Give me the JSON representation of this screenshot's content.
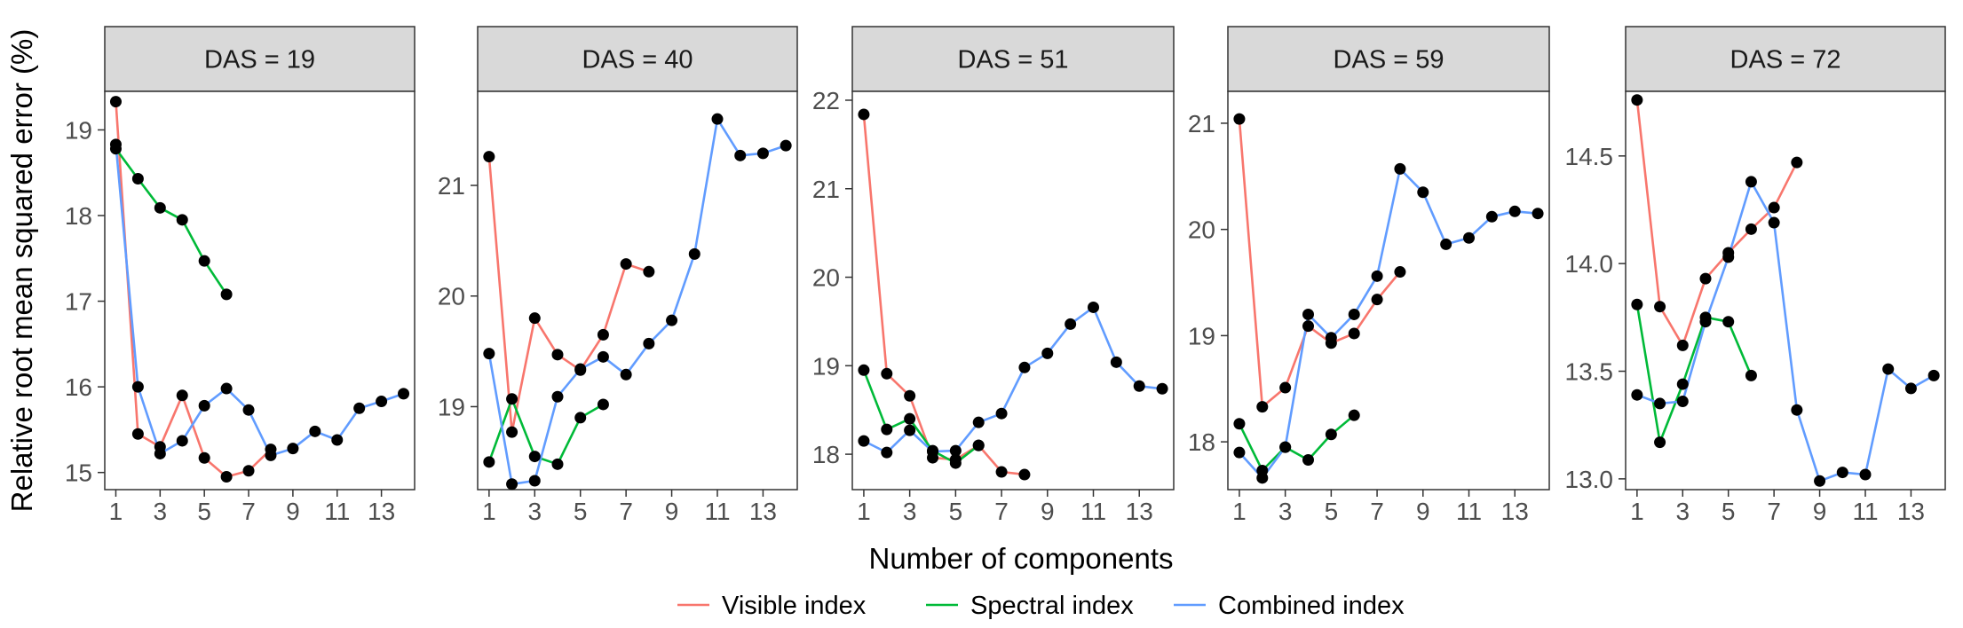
{
  "chart_data": {
    "type": "line",
    "xlabel": "Number of components",
    "ylabel": "Relative root mean squared error (%)",
    "legend": {
      "position": "bottom",
      "entries": [
        {
          "name": "Visible index",
          "color": "#F8766D"
        },
        {
          "name": "Spectral index",
          "color": "#00BA38"
        },
        {
          "name": "Combined index",
          "color": "#619CFF"
        }
      ]
    },
    "grid": false,
    "markers": {
      "shape": "circle",
      "color": "#000000"
    },
    "panels": [
      {
        "strip": "DAS = 19",
        "xlim": [
          0.5,
          14.5
        ],
        "xticks": [
          1,
          3,
          5,
          7,
          9,
          11,
          13
        ],
        "ylim": [
          14.8,
          19.45
        ],
        "yticks": [
          15,
          16,
          17,
          18,
          19
        ],
        "series": [
          {
            "name": "Visible index",
            "x": [
              1,
              2,
              3,
              4,
              5,
              6,
              7,
              8
            ],
            "y": [
              19.33,
              15.45,
              15.3,
              15.9,
              15.17,
              14.95,
              15.02,
              15.27
            ]
          },
          {
            "name": "Spectral index",
            "x": [
              1,
              2,
              3,
              4,
              5,
              6
            ],
            "y": [
              18.78,
              18.43,
              18.09,
              17.95,
              17.47,
              17.08
            ]
          },
          {
            "name": "Combined index",
            "x": [
              1,
              2,
              3,
              4,
              5,
              6,
              7,
              8,
              9,
              10,
              11,
              12,
              13,
              14
            ],
            "y": [
              18.83,
              16.0,
              15.22,
              15.37,
              15.78,
              15.98,
              15.73,
              15.2,
              15.28,
              15.48,
              15.38,
              15.75,
              15.83,
              15.92
            ]
          }
        ]
      },
      {
        "strip": "DAS = 40",
        "xlim": [
          0.5,
          14.5
        ],
        "xticks": [
          1,
          3,
          5,
          7,
          9,
          11,
          13
        ],
        "ylim": [
          18.25,
          21.85
        ],
        "yticks": [
          19,
          20,
          21
        ],
        "series": [
          {
            "name": "Visible index",
            "x": [
              1,
              2,
              3,
              4,
              5,
              6,
              7,
              8
            ],
            "y": [
              21.26,
              18.77,
              19.8,
              19.47,
              19.33,
              19.65,
              20.29,
              20.22
            ]
          },
          {
            "name": "Spectral index",
            "x": [
              1,
              2,
              3,
              4,
              5,
              6
            ],
            "y": [
              18.5,
              19.07,
              18.55,
              18.48,
              18.9,
              19.02
            ]
          },
          {
            "name": "Combined index",
            "x": [
              1,
              2,
              3,
              4,
              5,
              6,
              7,
              8,
              9,
              10,
              11,
              12,
              13,
              14
            ],
            "y": [
              19.48,
              18.3,
              18.33,
              19.09,
              19.34,
              19.45,
              19.29,
              19.57,
              19.78,
              20.38,
              21.6,
              21.27,
              21.29,
              21.36
            ]
          }
        ]
      },
      {
        "strip": "DAS = 51",
        "xlim": [
          0.5,
          14.5
        ],
        "xticks": [
          1,
          3,
          5,
          7,
          9,
          11,
          13
        ],
        "ylim": [
          17.6,
          22.1
        ],
        "yticks": [
          18,
          19,
          20,
          21,
          22
        ],
        "series": [
          {
            "name": "Visible index",
            "x": [
              1,
              2,
              3,
              4,
              5,
              6,
              7,
              8
            ],
            "y": [
              21.84,
              18.91,
              18.66,
              17.96,
              17.94,
              18.1,
              17.8,
              17.77
            ]
          },
          {
            "name": "Spectral index",
            "x": [
              1,
              2,
              3,
              4,
              5,
              6
            ],
            "y": [
              18.95,
              18.28,
              18.4,
              18.04,
              17.9,
              18.1
            ]
          },
          {
            "name": "Combined index",
            "x": [
              1,
              2,
              3,
              4,
              5,
              6,
              7,
              8,
              9,
              10,
              11,
              12,
              13,
              14
            ],
            "y": [
              18.15,
              18.02,
              18.27,
              18.03,
              18.04,
              18.36,
              18.46,
              18.98,
              19.14,
              19.47,
              19.66,
              19.04,
              18.77,
              18.74
            ]
          }
        ]
      },
      {
        "strip": "DAS = 59",
        "xlim": [
          0.5,
          14.5
        ],
        "xticks": [
          1,
          3,
          5,
          7,
          9,
          11,
          13
        ],
        "ylim": [
          17.55,
          21.3
        ],
        "yticks": [
          18,
          19,
          20,
          21
        ],
        "series": [
          {
            "name": "Visible index",
            "x": [
              1,
              2,
              3,
              4,
              5,
              6,
              7,
              8
            ],
            "y": [
              21.04,
              18.33,
              18.51,
              19.09,
              18.93,
              19.02,
              19.34,
              19.6
            ]
          },
          {
            "name": "Spectral index",
            "x": [
              1,
              2,
              3,
              4,
              5,
              6
            ],
            "y": [
              18.17,
              17.73,
              17.95,
              17.83,
              18.07,
              18.25
            ]
          },
          {
            "name": "Combined index",
            "x": [
              1,
              2,
              3,
              4,
              5,
              6,
              7,
              8,
              9,
              10,
              11,
              12,
              13,
              14
            ],
            "y": [
              17.9,
              17.66,
              17.95,
              19.2,
              18.98,
              19.2,
              19.56,
              20.57,
              20.35,
              19.86,
              19.92,
              20.12,
              20.17,
              20.15
            ]
          }
        ]
      },
      {
        "strip": "DAS = 72",
        "xlim": [
          0.5,
          14.5
        ],
        "xticks": [
          1,
          3,
          5,
          7,
          9,
          11,
          13
        ],
        "ylim": [
          12.95,
          14.8
        ],
        "yticks": [
          13.0,
          13.5,
          14.0,
          14.5
        ],
        "series": [
          {
            "name": "Visible index",
            "x": [
              1,
              2,
              3,
              4,
              5,
              6,
              7,
              8
            ],
            "y": [
              14.76,
              13.8,
              13.62,
              13.93,
              14.05,
              14.16,
              14.26,
              14.47
            ]
          },
          {
            "name": "Spectral index",
            "x": [
              1,
              2,
              3,
              4,
              5,
              6
            ],
            "y": [
              13.81,
              13.17,
              13.44,
              13.75,
              13.73,
              13.48
            ]
          },
          {
            "name": "Combined index",
            "x": [
              1,
              2,
              3,
              4,
              5,
              6,
              7,
              8,
              9,
              10,
              11,
              12,
              13,
              14
            ],
            "y": [
              13.39,
              13.35,
              13.36,
              13.73,
              14.03,
              14.38,
              14.19,
              13.32,
              12.99,
              13.03,
              13.02,
              13.51,
              13.42,
              13.48
            ]
          }
        ]
      }
    ]
  }
}
